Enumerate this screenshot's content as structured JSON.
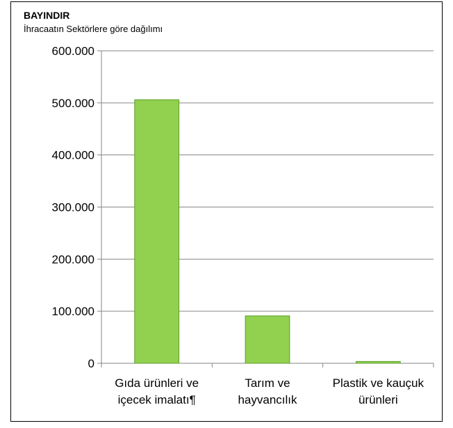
{
  "chart_data": {
    "type": "bar",
    "title": "BAYINDIR",
    "subtitle": "İhracaatın Sektörlere göre dağılımı",
    "categories": [
      [
        "Gıda ürünleri ve",
        "içecek imalatı¶"
      ],
      [
        "Tarım ve",
        "hayvancılık"
      ],
      [
        "Plastik ve kauçuk",
        "ürünleri"
      ]
    ],
    "values": [
      506000,
      91000,
      3500
    ],
    "ylim": [
      0,
      600000
    ],
    "yticks": [
      0,
      100000,
      200000,
      300000,
      400000,
      500000,
      600000
    ],
    "ytick_labels": [
      "0",
      "100.000",
      "200.000",
      "300.000",
      "400.000",
      "500.000",
      "600.000"
    ],
    "grid": true,
    "legend": "none",
    "colors": {
      "bar_fill": "#92d050",
      "bar_stroke": "#5a9e2a",
      "grid": "#868686",
      "axis": "#868686"
    }
  }
}
